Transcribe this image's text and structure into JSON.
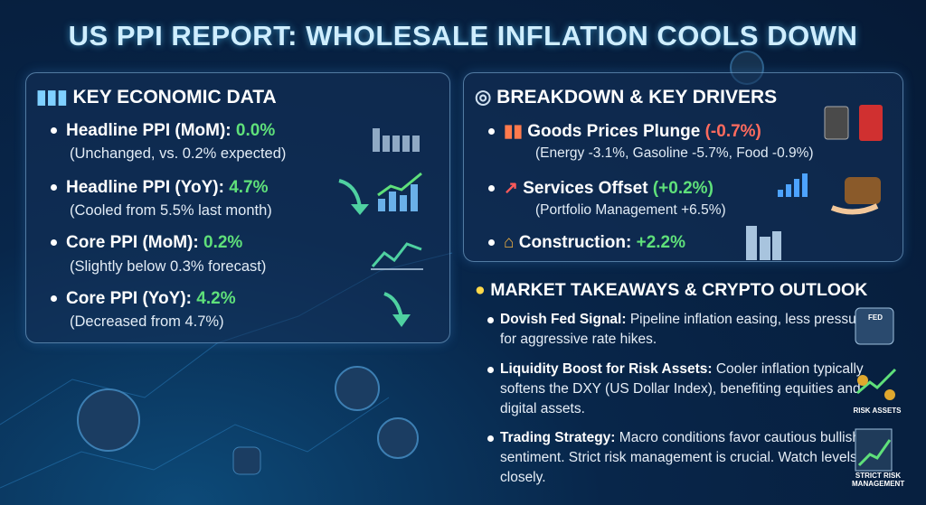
{
  "title": "US PPI REPORT: WHOLESALE INFLATION COOLS DOWN",
  "key_data": {
    "heading": "KEY ECONOMIC DATA",
    "items": [
      {
        "label": "Headline PPI (MoM):",
        "value": "0.0%",
        "note": "(Unchanged, vs. 0.2% expected)"
      },
      {
        "label": "Headline PPI (YoY):",
        "value": "4.7%",
        "note": "(Cooled from 5.5% last month)"
      },
      {
        "label": "Core PPI (MoM):",
        "value": "0.2%",
        "note": "(Slightly below 0.3% forecast)"
      },
      {
        "label": "Core PPI (YoY):",
        "value": "4.2%",
        "note": "(Decreased from 4.7%)"
      }
    ]
  },
  "breakdown": {
    "heading": "BREAKDOWN & KEY DRIVERS",
    "items": [
      {
        "label": "Goods Prices Plunge",
        "value": "(-0.7%)",
        "note": "(Energy -3.1%, Gasoline -5.7%, Food -0.9%)"
      },
      {
        "label": "Services Offset",
        "value": "(+0.2%)",
        "note": "(Portfolio Management +6.5%)"
      },
      {
        "label": "Construction:",
        "value": "+2.2%"
      }
    ]
  },
  "takeaways": {
    "heading": "MARKET TAKEAWAYS & CRYPTO OUTLOOK",
    "items": [
      {
        "label": "Dovish Fed Signal:",
        "text": "Pipeline inflation easing, less pressure for aggressive rate hikes."
      },
      {
        "label": "Liquidity Boost for Risk Assets:",
        "text": "Cooler inflation typically softens the DXY (US Dollar Index), benefiting equities and digital assets."
      },
      {
        "label": "Trading Strategy:",
        "text": "Macro conditions favor cautious bullish sentiment. Strict risk management is crucial. Watch levels closely."
      }
    ]
  },
  "icons": {
    "fed": "FED",
    "risk_assets": "RISK ASSETS",
    "risk_management": "STRICT RISK MANAGEMENT"
  }
}
